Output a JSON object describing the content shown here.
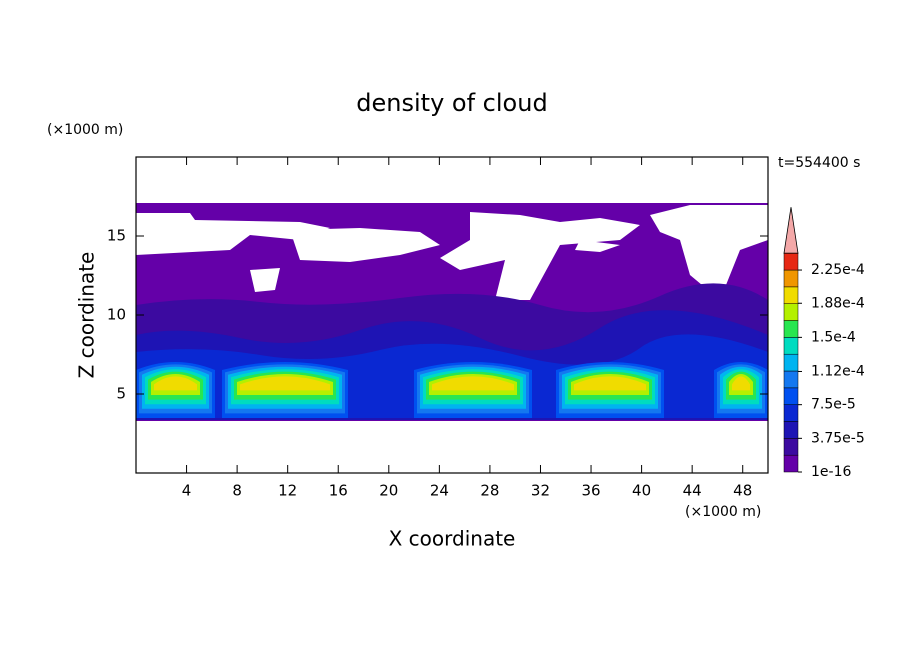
{
  "chart_data": {
    "type": "contour",
    "title": "density of cloud",
    "x_label": "X coordinate",
    "y_label": "Z coordinate",
    "x_unit": "(×1000 m)",
    "y_unit": "(×1000 m)",
    "time_label": "t=554400 s",
    "xlim": [
      0,
      50
    ],
    "ylim": [
      0,
      20
    ],
    "xticks": [
      4,
      8,
      12,
      16,
      20,
      24,
      28,
      32,
      36,
      40,
      44,
      48
    ],
    "yticks": [
      5,
      10,
      15
    ],
    "colorbar": {
      "clim": [
        1e-16,
        0.00024375
      ],
      "colors": [
        "#6400a8",
        "#3c0aa0",
        "#1e14b4",
        "#0a28d2",
        "#0050f0",
        "#1478f0",
        "#00b4f0",
        "#00dcc0",
        "#28e650",
        "#b4f000",
        "#f0dc00",
        "#f09600",
        "#e62814"
      ],
      "extend_color": "#f4a8a8",
      "ticks": [
        {
          "value": 1e-16,
          "label": "1e-16"
        },
        {
          "value": 3.75e-05,
          "label": "3.75e-5"
        },
        {
          "value": 7.5e-05,
          "label": "7.5e-5"
        },
        {
          "value": 0.000112,
          "label": "1.12e-4"
        },
        {
          "value": 0.00015,
          "label": "1.5e-4"
        },
        {
          "value": 0.000188,
          "label": "1.88e-4"
        },
        {
          "value": 0.000225,
          "label": "2.25e-4"
        }
      ]
    }
  }
}
